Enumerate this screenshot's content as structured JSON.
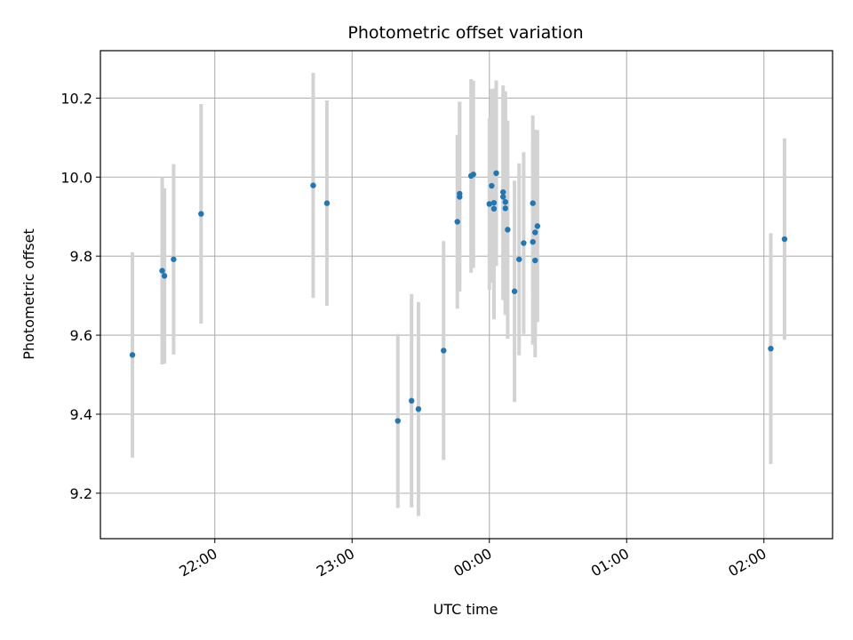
{
  "chart_data": {
    "type": "scatter",
    "title": "Photometric offset variation",
    "xlabel": "UTC time",
    "ylabel": "Photometric offset",
    "x_unit": "time HH:MM (UTC), after-midnight values continue past 24:00",
    "xlim": [
      "21:10",
      "02:30"
    ],
    "ylim": [
      9.085,
      10.32
    ],
    "x_ticks": [
      "22:00",
      "23:00",
      "00:00",
      "01:00",
      "02:00"
    ],
    "y_ticks": [
      9.2,
      9.4,
      9.6,
      9.8,
      10.0,
      10.2
    ],
    "grid": true,
    "colors": {
      "point": "#1f77b4",
      "errorbar": "#d3d3d3"
    },
    "points": [
      {
        "t": "21:24",
        "y": 9.55,
        "err": 0.26
      },
      {
        "t": "21:37",
        "y": 9.763,
        "err": 0.237
      },
      {
        "t": "21:38",
        "y": 9.75,
        "err": 0.222
      },
      {
        "t": "21:42",
        "y": 9.792,
        "err": 0.241
      },
      {
        "t": "21:54",
        "y": 9.907,
        "err": 0.278
      },
      {
        "t": "22:43",
        "y": 9.979,
        "err": 0.285
      },
      {
        "t": "22:49",
        "y": 9.934,
        "err": 0.26
      },
      {
        "t": "23:20",
        "y": 9.383,
        "err": 0.22
      },
      {
        "t": "23:26",
        "y": 9.434,
        "err": 0.27
      },
      {
        "t": "23:29",
        "y": 9.413,
        "err": 0.271
      },
      {
        "t": "23:40",
        "y": 9.561,
        "err": 0.277
      },
      {
        "t": "23:46",
        "y": 9.887,
        "err": 0.22
      },
      {
        "t": "23:47",
        "y": 9.958,
        "err": 0.233
      },
      {
        "t": "23:47",
        "y": 9.95,
        "err": 0.24
      },
      {
        "t": "23:52",
        "y": 10.003,
        "err": 0.245
      },
      {
        "t": "23:53",
        "y": 10.007,
        "err": 0.237
      },
      {
        "t": "24:00",
        "y": 9.932,
        "err": 0.217
      },
      {
        "t": "24:01",
        "y": 9.978,
        "err": 0.245
      },
      {
        "t": "24:02",
        "y": 9.935,
        "err": 0.289
      },
      {
        "t": "24:02",
        "y": 9.92,
        "err": 0.28
      },
      {
        "t": "24:03",
        "y": 10.01,
        "err": 0.235
      },
      {
        "t": "24:06",
        "y": 9.962,
        "err": 0.27
      },
      {
        "t": "24:06",
        "y": 9.95,
        "err": 0.261
      },
      {
        "t": "24:07",
        "y": 9.937,
        "err": 0.28
      },
      {
        "t": "24:07",
        "y": 9.921,
        "err": 0.27
      },
      {
        "t": "24:08",
        "y": 9.867,
        "err": 0.276
      },
      {
        "t": "24:11",
        "y": 9.711,
        "err": 0.28
      },
      {
        "t": "24:13",
        "y": 9.792,
        "err": 0.243
      },
      {
        "t": "24:15",
        "y": 9.833,
        "err": 0.23
      },
      {
        "t": "24:19",
        "y": 9.934,
        "err": 0.222
      },
      {
        "t": "24:19",
        "y": 9.836,
        "err": 0.26
      },
      {
        "t": "24:20",
        "y": 9.789,
        "err": 0.245
      },
      {
        "t": "24:20",
        "y": 9.86,
        "err": 0.26
      },
      {
        "t": "24:21",
        "y": 9.876,
        "err": 0.243
      },
      {
        "t": "26:03",
        "y": 9.566,
        "err": 0.292
      },
      {
        "t": "26:09",
        "y": 9.843,
        "err": 0.255
      }
    ]
  }
}
